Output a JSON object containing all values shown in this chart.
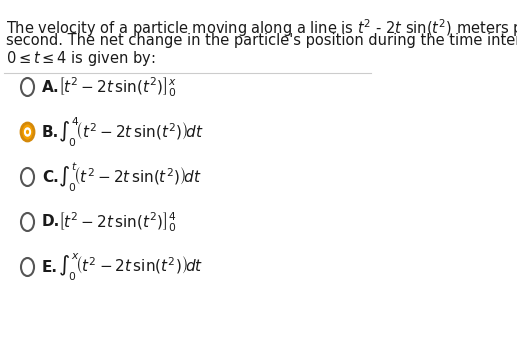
{
  "background_color": "#ffffff",
  "text_color": "#1a1a1a",
  "question_text": "The velocity of a particle moving along a line is $t^2$ - 2$t$ sin($t^2$) meters per\nsecond. The net change in the particle's position during the time interval\n$0 \\leq t \\leq 4$ is given by:",
  "options": [
    {
      "label": "A.",
      "formula": "$\\left[t^2 - 2t\\sin(t^2)\\right]_0^x$",
      "selected": false
    },
    {
      "label": "B.",
      "formula": "$\\int_0^4\\!\\left(t^2 - 2t\\sin(t^2)\\right)\\!dt$",
      "selected": true
    },
    {
      "label": "C.",
      "formula": "$\\int_0^t\\!\\left(t^2 - 2t\\sin(t^2)\\right)\\!dt$",
      "selected": false
    },
    {
      "label": "D.",
      "formula": "$\\left[t^2 - 2t\\sin(t^2)\\right]_0^4$",
      "selected": false
    },
    {
      "label": "E.",
      "formula": "$\\int_0^x\\!\\left(t^2 - 2t\\sin(t^2)\\right)\\!dt$",
      "selected": false
    }
  ],
  "radio_unselected_color": "#555555",
  "radio_selected_fill": "#f5a623",
  "radio_selected_border": "#e8890c",
  "divider_color": "#cccccc",
  "font_size_question": 11,
  "font_size_options": 12
}
